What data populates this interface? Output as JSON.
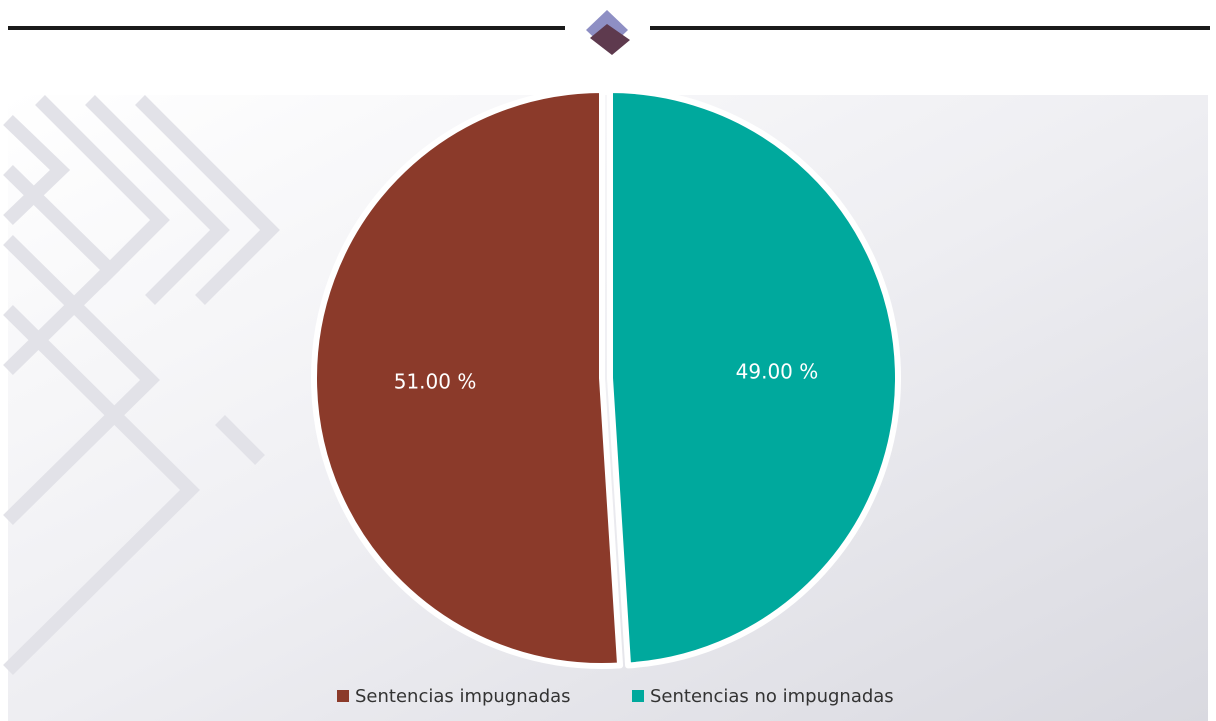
{
  "chart_data": {
    "type": "pie",
    "categories": [
      "Sentencias impugnadas",
      "Sentencias no impugnadas"
    ],
    "values": [
      51,
      49
    ],
    "value_labels": [
      "51.00 %",
      "49.00 %"
    ],
    "colors": [
      "#8b3a2a",
      "#00a99d"
    ],
    "legend": "bottom"
  }
}
